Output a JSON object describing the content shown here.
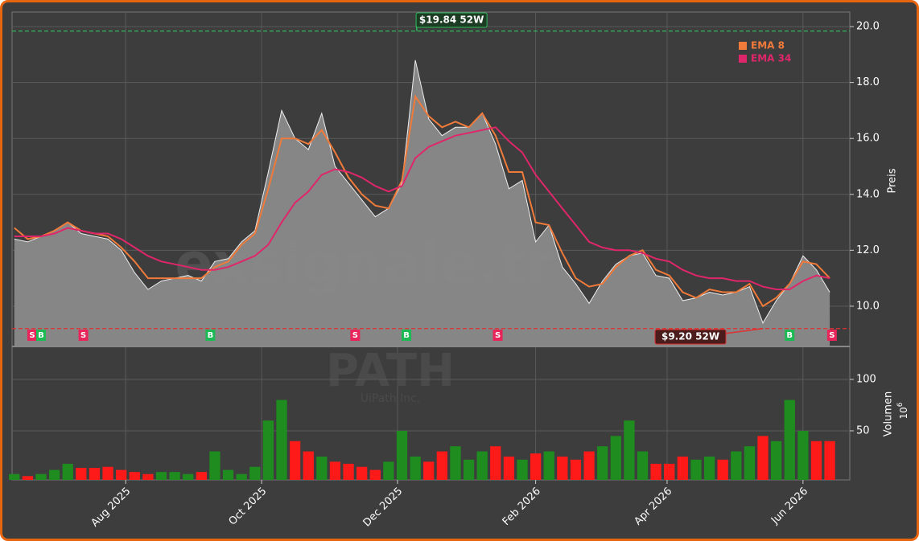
{
  "chart_data": [
    {
      "type": "area",
      "watermark": "exsignale.tr",
      "ticker": "PATH",
      "company": "UiPath Inc.",
      "y_label": "Preis",
      "xlim": [
        -51,
        325
      ],
      "ylim": [
        8.56,
        20.52
      ],
      "xticks": [
        {
          "value": 0,
          "label": "Aug 2025"
        },
        {
          "value": 61,
          "label": "Oct 2025"
        },
        {
          "value": 122,
          "label": "Dec 2025"
        },
        {
          "value": 184,
          "label": "Feb 2026"
        },
        {
          "value": 243,
          "label": "Apr 2026"
        },
        {
          "value": 304,
          "label": "Jun 2026"
        }
      ],
      "yticks": [
        {
          "value": 10,
          "label": "10.0"
        },
        {
          "value": 12,
          "label": "12.0"
        },
        {
          "value": 14,
          "label": "14.0"
        },
        {
          "value": 16,
          "label": "16.0"
        },
        {
          "value": 18,
          "label": "18.0"
        },
        {
          "value": 20,
          "label": "20.0"
        }
      ],
      "grid": true,
      "color": "#8a8a8a",
      "x": [
        -50,
        -44,
        -38,
        -32,
        -26,
        -20,
        -14,
        -8,
        -2,
        4,
        10,
        16,
        22,
        28,
        34,
        40,
        46,
        52,
        58,
        64,
        70,
        76,
        82,
        88,
        94,
        100,
        106,
        112,
        118,
        124,
        130,
        136,
        142,
        148,
        154,
        160,
        166,
        172,
        178,
        184,
        190,
        196,
        202,
        208,
        214,
        220,
        226,
        232,
        238,
        244,
        250,
        256,
        262,
        268,
        274,
        280,
        286,
        292,
        298,
        304,
        310,
        316
      ],
      "values": [
        12.4,
        12.3,
        12.5,
        12.7,
        13.0,
        12.6,
        12.5,
        12.4,
        12.0,
        11.2,
        10.6,
        10.9,
        11.0,
        11.1,
        10.9,
        11.6,
        11.7,
        12.3,
        12.7,
        14.8,
        17.0,
        16.0,
        15.6,
        16.9,
        15.0,
        14.4,
        13.8,
        13.2,
        13.5,
        14.4,
        18.8,
        16.7,
        16.1,
        16.4,
        16.4,
        16.9,
        15.8,
        14.2,
        14.5,
        12.3,
        12.9,
        11.4,
        10.8,
        10.1,
        10.9,
        11.5,
        11.8,
        11.9,
        11.1,
        11.0,
        10.2,
        10.3,
        10.5,
        10.4,
        10.5,
        10.7,
        9.4,
        10.2,
        10.8,
        11.8,
        11.3,
        10.5
      ],
      "series": [
        {
          "name": "EMA 8",
          "color": "#f07a3a",
          "values": [
            12.8,
            12.4,
            12.5,
            12.7,
            13.0,
            12.7,
            12.6,
            12.5,
            12.1,
            11.6,
            11.0,
            11.0,
            11.0,
            11.0,
            11.0,
            11.4,
            11.6,
            12.2,
            12.6,
            14.2,
            16.0,
            16.0,
            15.8,
            16.3,
            15.5,
            14.6,
            14.0,
            13.6,
            13.5,
            14.5,
            17.5,
            16.8,
            16.4,
            16.6,
            16.4,
            16.9,
            16.1,
            14.8,
            14.8,
            13.0,
            12.9,
            11.9,
            11.0,
            10.7,
            10.8,
            11.4,
            11.8,
            12.0,
            11.3,
            11.1,
            10.5,
            10.3,
            10.6,
            10.5,
            10.5,
            10.8,
            10.0,
            10.3,
            10.8,
            11.6,
            11.5,
            11.0
          ]
        },
        {
          "name": "EMA 34",
          "color": "#e0266a",
          "values": [
            12.5,
            12.5,
            12.5,
            12.6,
            12.8,
            12.7,
            12.6,
            12.6,
            12.4,
            12.1,
            11.8,
            11.6,
            11.5,
            11.4,
            11.3,
            11.3,
            11.4,
            11.6,
            11.8,
            12.2,
            13.0,
            13.7,
            14.1,
            14.7,
            14.9,
            14.8,
            14.6,
            14.3,
            14.1,
            14.3,
            15.3,
            15.7,
            15.9,
            16.1,
            16.2,
            16.3,
            16.4,
            15.9,
            15.5,
            14.7,
            14.1,
            13.5,
            12.9,
            12.3,
            12.1,
            12.0,
            12.0,
            11.9,
            11.7,
            11.6,
            11.3,
            11.1,
            11.0,
            11.0,
            10.9,
            10.9,
            10.7,
            10.6,
            10.6,
            10.9,
            11.1,
            11.0
          ]
        }
      ],
      "annotations": [
        {
          "value": 19.84,
          "label": "$19.84 52W",
          "color": "#2eb85c",
          "x": 130
        },
        {
          "value": 9.2,
          "label": "$9.20 52W",
          "color": "#e03030",
          "x": 286
        }
      ],
      "signals": [
        {
          "x": -42,
          "label": "S",
          "color": "#e8245a"
        },
        {
          "x": -38,
          "label": "B",
          "color": "#1db954"
        },
        {
          "x": -19,
          "label": "S",
          "color": "#e8245a"
        },
        {
          "x": 38,
          "label": "B",
          "color": "#1db954"
        },
        {
          "x": 103,
          "label": "S",
          "color": "#e8245a"
        },
        {
          "x": 126,
          "label": "B",
          "color": "#1db954"
        },
        {
          "x": 167,
          "label": "S",
          "color": "#e8245a"
        },
        {
          "x": 298,
          "label": "B",
          "color": "#1db954"
        },
        {
          "x": 317,
          "label": "S",
          "color": "#e8245a"
        }
      ]
    },
    {
      "type": "bar",
      "y_label": "Volumen",
      "y_unit": "10",
      "y_unit_exp": "6",
      "xlim": [
        -51,
        325
      ],
      "ylim": [
        2.3,
        132
      ],
      "yticks": [
        50,
        100
      ],
      "up_color": "#1e8c1e",
      "down_color": "#ff1a1a",
      "x": [
        -50,
        -44,
        -38,
        -32,
        -26,
        -20,
        -14,
        -8,
        -2,
        4,
        10,
        16,
        22,
        28,
        34,
        40,
        46,
        52,
        58,
        64,
        70,
        76,
        82,
        88,
        94,
        100,
        106,
        112,
        118,
        124,
        130,
        136,
        142,
        148,
        154,
        160,
        166,
        172,
        178,
        184,
        190,
        196,
        202,
        208,
        214,
        220,
        226,
        232,
        238,
        244,
        250,
        256,
        262,
        268,
        274,
        280,
        286,
        292,
        298,
        304,
        310,
        316
      ],
      "values": [
        8,
        6,
        8,
        12,
        18,
        14,
        14,
        15,
        12,
        10,
        8,
        10,
        10,
        8,
        10,
        30,
        12,
        8,
        15,
        60,
        80,
        40,
        30,
        25,
        20,
        18,
        15,
        12,
        20,
        50,
        25,
        20,
        30,
        35,
        22,
        30,
        35,
        25,
        22,
        28,
        30,
        25,
        22,
        30,
        35,
        45,
        60,
        30,
        18,
        18,
        25,
        22,
        25,
        22,
        30,
        35,
        45,
        40,
        80,
        50,
        40,
        40
      ]
    }
  ]
}
